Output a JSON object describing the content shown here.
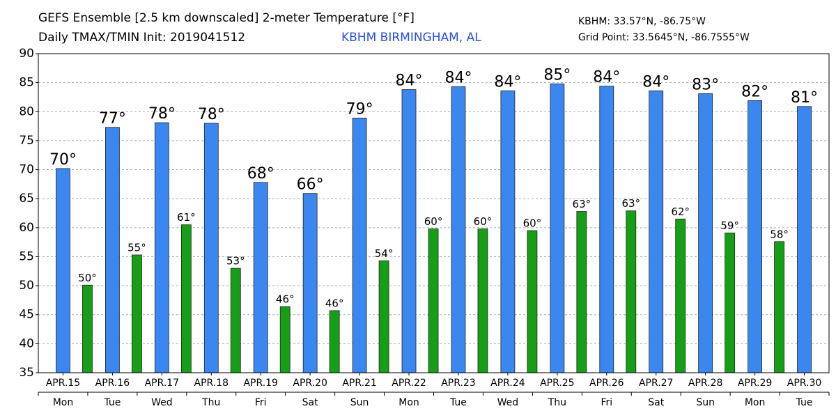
{
  "chart_data": {
    "type": "bar",
    "title": "GEFS Ensemble [2.5 km downscaled] 2-meter Temperature [°F]",
    "subtitle": "Daily TMAX/TMIN Init: 2019041512",
    "station": "KBHM BIRMINGHAM, AL",
    "station_coords": "KBHM: 33.57°N, -86.75°W",
    "grid_point": "Grid Point: 33.5645°N, -86.7555°W",
    "categories": [
      "APR.15",
      "APR.16",
      "APR.17",
      "APR.18",
      "APR.19",
      "APR.20",
      "APR.21",
      "APR.22",
      "APR.23",
      "APR.24",
      "APR.25",
      "APR.26",
      "APR.27",
      "APR.28",
      "APR.29",
      "APR.30"
    ],
    "weekdays": [
      "Mon",
      "Tue",
      "Wed",
      "Thu",
      "Fri",
      "Sat",
      "Sun",
      "Mon",
      "Tue",
      "Wed",
      "Thu",
      "Fri",
      "Sat",
      "Sun",
      "Mon",
      "Tue"
    ],
    "series": [
      {
        "color": "#3b87f0",
        "values": [
          70.2,
          77.3,
          78.1,
          78.0,
          67.8,
          65.9,
          78.9,
          83.8,
          84.3,
          83.6,
          84.8,
          84.4,
          83.6,
          83.1,
          81.9,
          80.9
        ],
        "value_labels": [
          "70°",
          "77°",
          "78°",
          "78°",
          "68°",
          "66°",
          "79°",
          "84°",
          "84°",
          "84°",
          "85°",
          "84°",
          "84°",
          "83°",
          "82°",
          "81°"
        ]
      },
      {
        "color": "#179e17",
        "values": [
          50.1,
          55.3,
          60.5,
          53.0,
          46.4,
          45.7,
          54.3,
          59.8,
          59.8,
          59.5,
          62.8,
          62.9,
          61.5,
          59.1,
          57.6,
          null
        ],
        "value_labels": [
          "50°",
          "55°",
          "61°",
          "53°",
          "46°",
          "46°",
          "54°",
          "60°",
          "60°",
          "60°",
          "63°",
          "63°",
          "62°",
          "59°",
          "58°",
          null
        ]
      }
    ],
    "ylim": [
      35,
      90
    ],
    "yticks": [
      35,
      40,
      45,
      50,
      55,
      60,
      65,
      70,
      75,
      80,
      85,
      90
    ],
    "grid": true
  }
}
